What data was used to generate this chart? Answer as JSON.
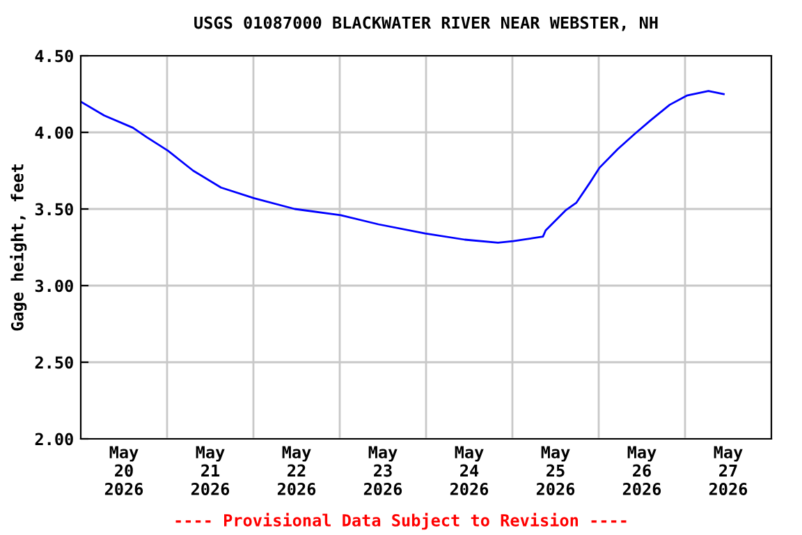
{
  "chart_data": {
    "type": "line",
    "title": "USGS 01087000 BLACKWATER RIVER NEAR WEBSTER, NH",
    "ylabel": "Gage height, feet",
    "annotations": [
      "---- Provisional Data Subject to Revision ----"
    ],
    "x": [
      "2026-05-19T12:00",
      "2026-05-19T18:30",
      "2026-05-20T02:30",
      "2026-05-20T06:15",
      "2026-05-20T12:15",
      "2026-05-20T19:15",
      "2026-05-21T03:00",
      "2026-05-21T12:15",
      "2026-05-21T23:30",
      "2026-05-22T12:15",
      "2026-05-22T22:45",
      "2026-05-23T11:45",
      "2026-05-23T22:45",
      "2026-05-24T08:00",
      "2026-05-24T12:15",
      "2026-05-24T20:30",
      "2026-05-24T21:15",
      "2026-05-25T02:45",
      "2026-05-25T05:45",
      "2026-05-25T09:30",
      "2026-05-25T12:15",
      "2026-05-25T17:15",
      "2026-05-25T22:00",
      "2026-05-26T02:30",
      "2026-05-26T07:45",
      "2026-05-26T12:30",
      "2026-05-26T18:30",
      "2026-05-26T22:45"
    ],
    "series": [
      {
        "color": "#0000ff",
        "values": [
          4.2,
          4.11,
          4.03,
          3.97,
          3.88,
          3.75,
          3.64,
          3.57,
          3.5,
          3.46,
          3.4,
          3.34,
          3.3,
          3.28,
          3.29,
          3.32,
          3.36,
          3.49,
          3.54,
          3.67,
          3.77,
          3.89,
          3.99,
          4.08,
          4.18,
          4.24,
          4.27,
          4.25
        ]
      }
    ],
    "xlim": [
      "2026-05-19T12:00",
      "2026-05-27T12:00"
    ],
    "xticks": [
      {
        "value": "2026-05-20T00:00",
        "label": "May\n20\n2026"
      },
      {
        "value": "2026-05-20T12:00",
        "label": null
      },
      {
        "value": "2026-05-21T00:00",
        "label": "May\n21\n2026"
      },
      {
        "value": "2026-05-21T12:00",
        "label": null
      },
      {
        "value": "2026-05-22T00:00",
        "label": "May\n22\n2026"
      },
      {
        "value": "2026-05-22T12:00",
        "label": null
      },
      {
        "value": "2026-05-23T00:00",
        "label": "May\n23\n2026"
      },
      {
        "value": "2026-05-23T12:00",
        "label": null
      },
      {
        "value": "2026-05-24T00:00",
        "label": "May\n24\n2026"
      },
      {
        "value": "2026-05-24T12:00",
        "label": null
      },
      {
        "value": "2026-05-25T00:00",
        "label": "May\n25\n2026"
      },
      {
        "value": "2026-05-25T12:00",
        "label": null
      },
      {
        "value": "2026-05-26T00:00",
        "label": "May\n26\n2026"
      },
      {
        "value": "2026-05-26T12:00",
        "label": null
      },
      {
        "value": "2026-05-27T00:00",
        "label": "May\n27\n2026"
      }
    ],
    "ylim": [
      2.0,
      4.5
    ],
    "yticks": [
      {
        "value": 2.0,
        "label": "2.00"
      },
      {
        "value": 2.5,
        "label": "2.50"
      },
      {
        "value": 3.0,
        "label": "3.00"
      },
      {
        "value": 3.5,
        "label": "3.50"
      },
      {
        "value": 4.0,
        "label": "4.00"
      },
      {
        "value": 4.5,
        "label": "4.50"
      }
    ],
    "grid": true,
    "line_style": "solid",
    "marker": "none"
  }
}
